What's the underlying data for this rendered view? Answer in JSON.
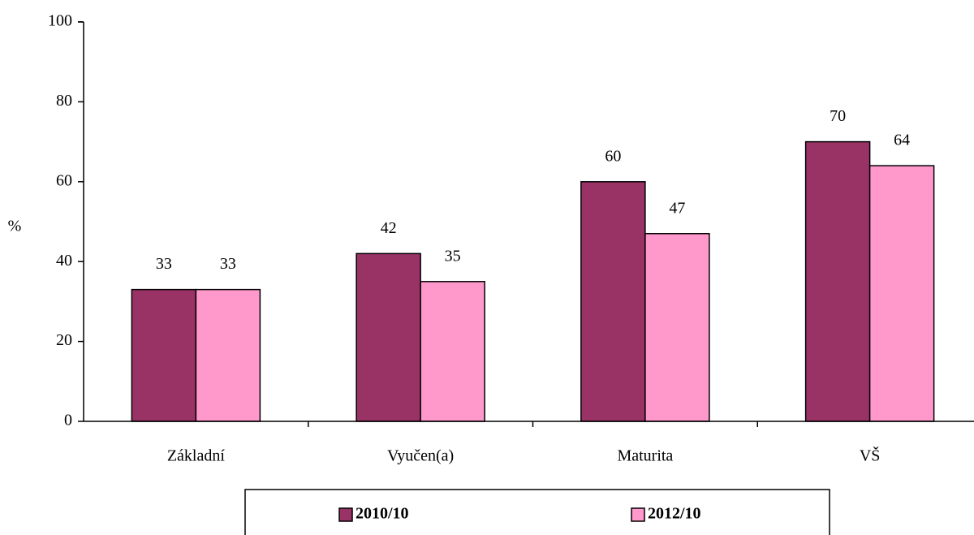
{
  "chart_data": {
    "type": "bar",
    "y_label": "%",
    "categories": [
      "Základní",
      "Vyučen(a)",
      "Maturita",
      "VŠ"
    ],
    "series": [
      {
        "name": "2010/10",
        "color": "#993366",
        "values": [
          33,
          42,
          60,
          70
        ]
      },
      {
        "name": "2012/10",
        "color": "#ff99cc",
        "values": [
          33,
          35,
          47,
          64
        ]
      }
    ],
    "ylim": [
      0,
      100
    ],
    "yticks": [
      0,
      20,
      40,
      60,
      80,
      100
    ],
    "grid": false,
    "legend": "bottom"
  }
}
